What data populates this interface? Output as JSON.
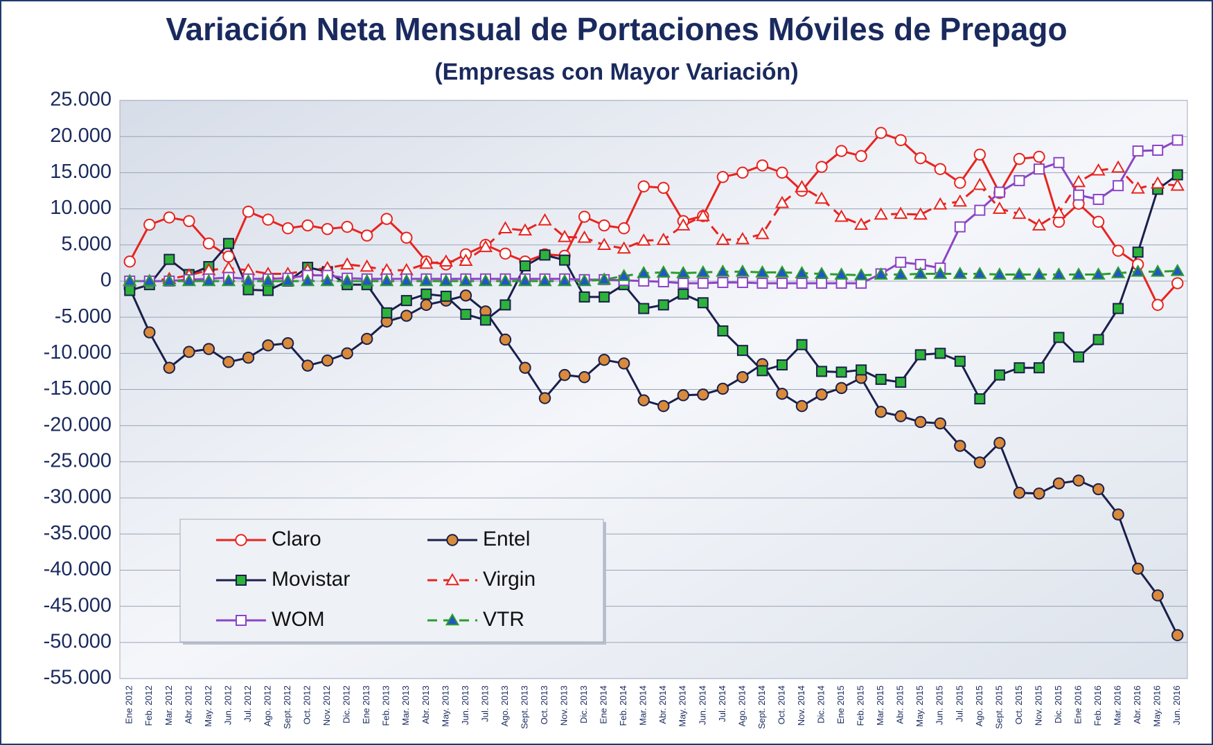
{
  "chart_data": {
    "type": "line",
    "title": "Variación Neta Mensual de Portaciones Móviles de Prepago",
    "subtitle": "(Empresas con Mayor Variación)",
    "categories": [
      "Ene 2012",
      "Feb. 2012",
      "Mar. 2012",
      "Abr. 2012",
      "May. 2012",
      "Jun. 2012",
      "Jul. 2012",
      "Ago. 2012",
      "Sept. 2012",
      "Oct. 2012",
      "Nov. 2012",
      "Dic. 2012",
      "Ene 2013",
      "Feb. 2013",
      "Mar. 2013",
      "Abr. 2013",
      "May. 2013",
      "Jun. 2013",
      "Jul. 2013",
      "Ago. 2013",
      "Sept. 2013",
      "Oct. 2013",
      "Nov. 2013",
      "Dic. 2013",
      "Ene 2014",
      "Feb. 2014",
      "Mar. 2014",
      "Abr. 2014",
      "May. 2014",
      "Jun. 2014",
      "Jul. 2014",
      "Ago. 2014",
      "Sept. 2014",
      "Oct. 2014",
      "Nov. 2014",
      "Dic. 2014",
      "Ene 2015",
      "Feb. 2015",
      "Mar. 2015",
      "Abr. 2015",
      "May. 2015",
      "Jun. 2015",
      "Jul. 2015",
      "Ago. 2015",
      "Sept. 2015",
      "Oct. 2015",
      "Nov. 2015",
      "Dic. 2015",
      "Ene 2016",
      "Feb. 2016",
      "Mar. 2016",
      "Abr. 2016",
      "May. 2016",
      "Jun. 2016"
    ],
    "series": [
      {
        "name": "Claro",
        "color": "#e8231f",
        "marker_color": "#ffffff",
        "marker": "circle",
        "dashed": false,
        "values": [
          2700,
          7800,
          8800,
          8300,
          5200,
          3400,
          9600,
          8500,
          7300,
          7700,
          7200,
          7500,
          6300,
          8600,
          6000,
          2700,
          2300,
          3700,
          5000,
          3800,
          2700,
          3700,
          3500,
          8900,
          7700,
          7300,
          13100,
          12900,
          8300,
          9000,
          14400,
          15000,
          16000,
          15000,
          12500,
          15800,
          18000,
          17300,
          20500,
          19500,
          17000,
          15500,
          13600,
          17500,
          12200,
          16900,
          17200,
          8200,
          10700,
          8200,
          4200,
          2300,
          -3300,
          -300
        ]
      },
      {
        "name": "Entel",
        "color": "#1a1f4b",
        "marker_color": "#d98a3a",
        "marker": "circle",
        "dashed": false,
        "values": [
          -1000,
          -7100,
          -12000,
          -9800,
          -9400,
          -11200,
          -10600,
          -8900,
          -8600,
          -11700,
          -11000,
          -10000,
          -8000,
          -5600,
          -4800,
          -3300,
          -2700,
          -2000,
          -4200,
          -8100,
          -12000,
          -16200,
          -13000,
          -13300,
          -10900,
          -11400,
          -16500,
          -17300,
          -15800,
          -15700,
          -14900,
          -13300,
          -11500,
          -15600,
          -17300,
          -15700,
          -14800,
          -13400,
          -18100,
          -18700,
          -19500,
          -19700,
          -22800,
          -25100,
          -22400,
          -29300,
          -29400,
          -28000,
          -27600,
          -28800,
          -32300,
          -39800,
          -43500,
          -49000
        ]
      },
      {
        "name": "Movistar",
        "color": "#1a1f4b",
        "marker_color": "#2db33a",
        "marker": "square",
        "dashed": false,
        "values": [
          -1300,
          -500,
          3000,
          900,
          2000,
          5200,
          -1200,
          -1300,
          0,
          1900,
          1300,
          -500,
          -500,
          -4400,
          -2700,
          -1800,
          -2100,
          -4600,
          -5400,
          -3300,
          2100,
          3600,
          2900,
          -2200,
          -2200,
          -500,
          -3800,
          -3300,
          -1800,
          -3000,
          -6900,
          -9600,
          -12400,
          -11600,
          -8800,
          -12500,
          -12600,
          -12300,
          -13600,
          -14000,
          -10200,
          -10000,
          -11100,
          -16300,
          -13000,
          -12000,
          -12000,
          -7800,
          -10500,
          -8100,
          -3800,
          4000,
          12700,
          14700
        ]
      },
      {
        "name": "Virgin",
        "color": "#e8231f",
        "marker_color": "#ffffff",
        "marker": "triangle",
        "dashed": true,
        "values": [
          0,
          0,
          300,
          800,
          1500,
          1800,
          1500,
          1000,
          1000,
          1500,
          1800,
          2300,
          2000,
          1500,
          1500,
          2400,
          2700,
          2800,
          4700,
          7300,
          7000,
          8400,
          6100,
          6000,
          5000,
          4500,
          5600,
          5700,
          7700,
          9000,
          5700,
          5800,
          6500,
          10800,
          13000,
          11400,
          8900,
          7800,
          9200,
          9300,
          9200,
          10600,
          11000,
          13300,
          10000,
          9300,
          7700,
          9400,
          13700,
          15300,
          15700,
          12800,
          13500,
          13200
        ]
      },
      {
        "name": "WOM",
        "color": "#8b44c6",
        "marker_color": "#ffffff",
        "marker": "square",
        "dashed": false,
        "values": [
          0,
          0,
          0,
          200,
          300,
          500,
          300,
          300,
          400,
          800,
          800,
          400,
          300,
          300,
          300,
          300,
          300,
          300,
          300,
          300,
          300,
          300,
          300,
          200,
          200,
          100,
          0,
          -100,
          -300,
          -300,
          -200,
          -200,
          -300,
          -300,
          -300,
          -300,
          -300,
          -300,
          1000,
          2600,
          2300,
          1800,
          7500,
          9800,
          12300,
          13900,
          15500,
          16400,
          11900,
          11300,
          13200,
          18000,
          18100,
          19500
        ]
      },
      {
        "name": "VTR",
        "color": "#2a9d2a",
        "marker_color": "#2255c8",
        "marker": "triangle",
        "dashed": true,
        "values": [
          0,
          0,
          0,
          0,
          0,
          0,
          0,
          0,
          0,
          0,
          0,
          0,
          0,
          0,
          0,
          0,
          0,
          0,
          0,
          0,
          0,
          0,
          0,
          0,
          200,
          700,
          1100,
          1200,
          1100,
          1200,
          1300,
          1300,
          1200,
          1200,
          1100,
          1000,
          900,
          800,
          900,
          900,
          1000,
          1000,
          1000,
          1000,
          900,
          900,
          900,
          900,
          900,
          900,
          1100,
          1300,
          1300,
          1400
        ]
      }
    ],
    "ylim": [
      -55000,
      25000
    ],
    "yticks": [
      {
        "value": -55000,
        "label": "-55.000"
      },
      {
        "value": -50000,
        "label": "-50.000"
      },
      {
        "value": -45000,
        "label": "-45.000"
      },
      {
        "value": -40000,
        "label": "-40.000"
      },
      {
        "value": -35000,
        "label": "-35.000"
      },
      {
        "value": -30000,
        "label": "-30.000"
      },
      {
        "value": -25000,
        "label": "-25.000"
      },
      {
        "value": -20000,
        "label": "-20.000"
      },
      {
        "value": -15000,
        "label": "-15.000"
      },
      {
        "value": -10000,
        "label": "-10.000"
      },
      {
        "value": -5000,
        "label": "-5.000"
      },
      0,
      {
        "value": 5000,
        "label": "5.000"
      },
      {
        "value": 10000,
        "label": "10.000"
      },
      {
        "value": 15000,
        "label": "15.000"
      },
      {
        "value": 20000,
        "label": "20.000"
      },
      {
        "value": 25000,
        "label": "25.000"
      }
    ],
    "grid": true,
    "legend": "lower left"
  }
}
